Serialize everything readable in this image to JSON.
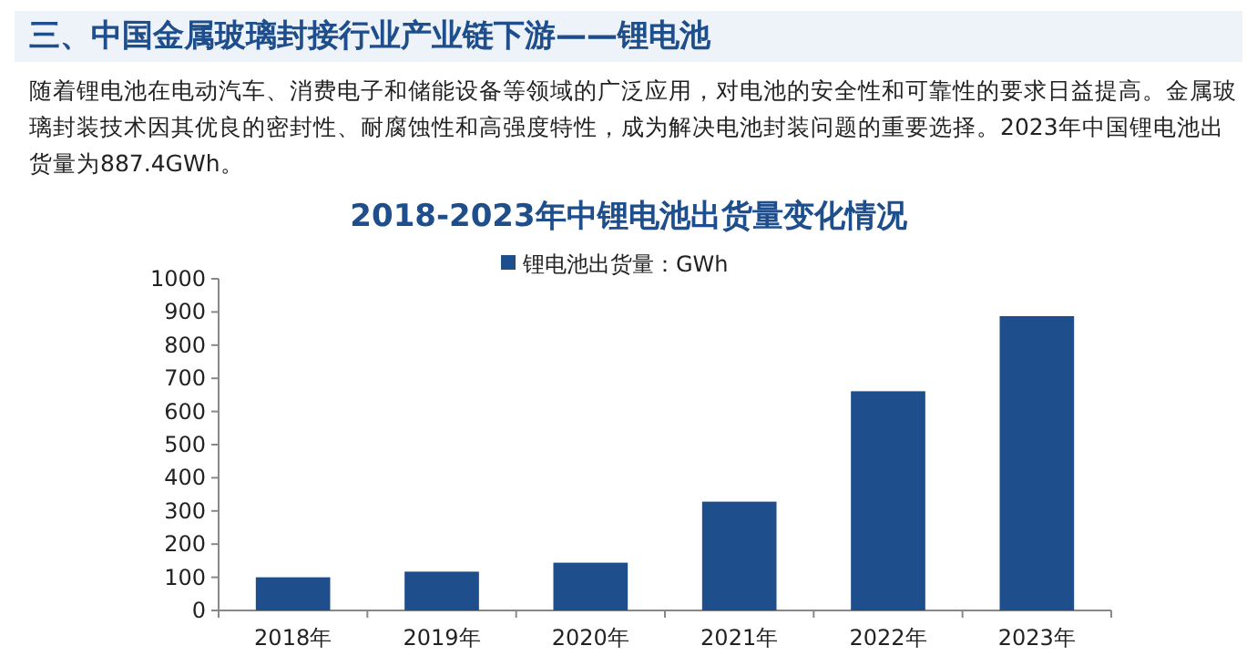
{
  "chart_data": {
    "type": "bar",
    "title": "2018-2023年中锂电池出货量变化情况",
    "annotations": [
      "三、中国金属玻璃封接行业产业链下游——锂电池",
      "随着锂电池在电动汽车、消费电子和储能设备等领域的广泛应用，对电池的安全性和可靠性的要求日益提高。金属玻璃封装技术因其优良的密封性、耐腐蚀性和高强度特性，成为解决电池封装问题的重要选择。2023年中国锂电池出货量为887.4GWh。"
    ],
    "categories": [
      "2018年",
      "2019年",
      "2020年",
      "2021年",
      "2022年",
      "2023年"
    ],
    "series": [
      {
        "name": "锂电池出货量：GWh",
        "color": "#1f4e8c",
        "values": [
          100,
          117,
          144,
          328,
          661,
          887.4
        ]
      }
    ],
    "ylim": [
      0,
      1000
    ],
    "yticks": [
      0,
      100,
      200,
      300,
      400,
      500,
      600,
      700,
      800,
      900,
      1000
    ],
    "grid": false,
    "legend": "top"
  }
}
